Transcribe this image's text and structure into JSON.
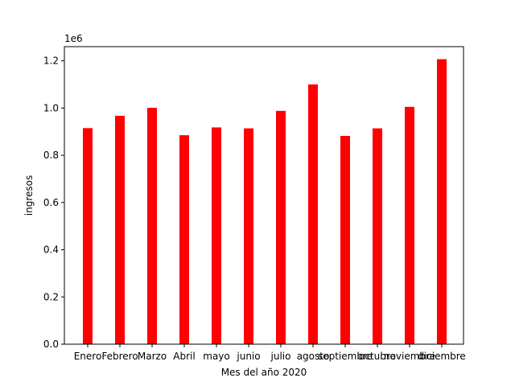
{
  "chart_data": {
    "type": "bar",
    "title": "",
    "xlabel": "Mes del año 2020",
    "ylabel": "ingresos",
    "y_offset_label": "1e6",
    "ylim": [
      0,
      1.26
    ],
    "yticks": [
      "0.0",
      "0.2",
      "0.4",
      "0.6",
      "0.8",
      "1.0",
      "1.2"
    ],
    "ytick_values": [
      0,
      0.2,
      0.4,
      0.6,
      0.8,
      1.0,
      1.2
    ],
    "categories": [
      "Enero",
      "Febrero",
      "Marzo",
      "Abril",
      "mayo",
      "junio",
      "julio",
      "agosto",
      "septiembre",
      "octubre",
      "noviembre",
      "diciembre"
    ],
    "values": [
      0.915,
      0.967,
      1.001,
      0.885,
      0.918,
      0.914,
      0.988,
      1.1,
      0.882,
      0.914,
      1.005,
      1.207
    ],
    "value_scale": 1000000,
    "bar_color": "#ff0000",
    "grid": false,
    "legend": "none"
  }
}
